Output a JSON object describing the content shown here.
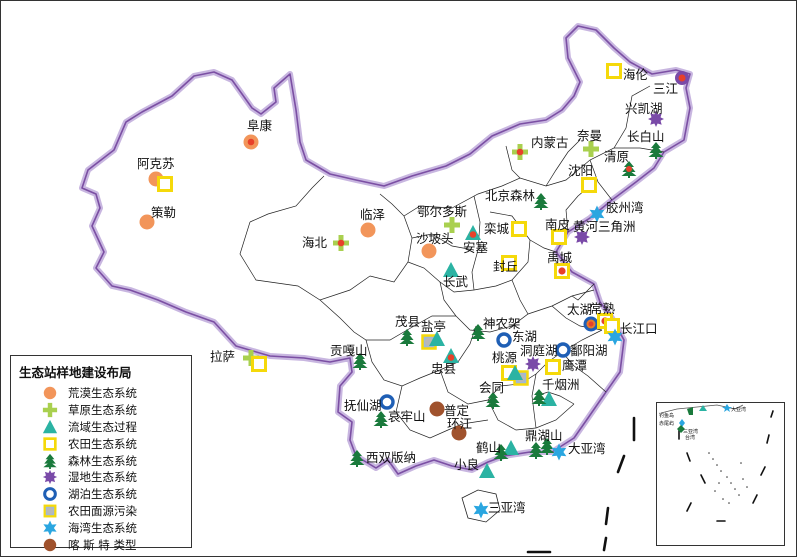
{
  "legend": {
    "title": "生态站样地建设布局",
    "items": [
      {
        "label": "荒漠生态系统",
        "icon": "desert-circle-icon",
        "color": "#f2955a"
      },
      {
        "label": "草原生态系统",
        "icon": "grassland-cross-icon",
        "color": "#a9d04f"
      },
      {
        "label": "流域生态过程",
        "icon": "watershed-triangle-icon",
        "color": "#2bb3a3"
      },
      {
        "label": "农田生态系统",
        "icon": "farmland-square-icon",
        "color": "#f5d90a"
      },
      {
        "label": "森林生态系统",
        "icon": "forest-tree-icon",
        "color": "#1a7a3c"
      },
      {
        "label": "湿地生态系统",
        "icon": "wetland-star-icon",
        "color": "#7a4aa8"
      },
      {
        "label": "湖泊生态系统",
        "icon": "lake-ring-icon",
        "color": "#1f5fb5"
      },
      {
        "label": "农田面源污染",
        "icon": "pollution-square-icon",
        "color": "#9fb8d8"
      },
      {
        "label": "海湾生态系统",
        "icon": "bay-star-icon",
        "color": "#2aa6e0"
      },
      {
        "label": "喀 斯 特 类型",
        "icon": "karst-circle-icon",
        "color": "#a0522d"
      }
    ]
  },
  "stations": [
    {
      "name": "阜康",
      "type": "desert"
    },
    {
      "name": "阿克苏",
      "type": "desert"
    },
    {
      "name": "策勒",
      "type": "desert"
    },
    {
      "name": "临泽",
      "type": "desert"
    },
    {
      "name": "海北",
      "type": "grassland"
    },
    {
      "name": "鄂尔多斯",
      "type": "grassland"
    },
    {
      "name": "沙坡头",
      "type": "desert"
    },
    {
      "name": "安塞",
      "type": "watershed"
    },
    {
      "name": "长武",
      "type": "watershed"
    },
    {
      "name": "拉萨",
      "type": "grassland"
    },
    {
      "name": "贡嘎山",
      "type": "forest"
    },
    {
      "name": "茂县",
      "type": "forest"
    },
    {
      "name": "盐亭",
      "type": "watershed"
    },
    {
      "name": "忠县",
      "type": "watershed"
    },
    {
      "name": "神农架",
      "type": "forest"
    },
    {
      "name": "东湖",
      "type": "lake"
    },
    {
      "name": "鄱阳湖",
      "type": "lake"
    },
    {
      "name": "洞庭湖",
      "type": "wetland"
    },
    {
      "name": "桃源",
      "type": "farmland"
    },
    {
      "name": "鹰潭",
      "type": "farmland"
    },
    {
      "name": "千烟洲",
      "type": "watershed"
    },
    {
      "name": "会同",
      "type": "forest"
    },
    {
      "name": "抚仙湖",
      "type": "lake"
    },
    {
      "name": "哀牢山",
      "type": "forest"
    },
    {
      "name": "普定",
      "type": "karst"
    },
    {
      "name": "环江",
      "type": "karst"
    },
    {
      "name": "西双版纳",
      "type": "forest"
    },
    {
      "name": "鹤山",
      "type": "forest"
    },
    {
      "name": "鼎湖山",
      "type": "forest"
    },
    {
      "name": "小良",
      "type": "watershed"
    },
    {
      "name": "大亚湾",
      "type": "bay"
    },
    {
      "name": "三亚湾",
      "type": "bay"
    },
    {
      "name": "太湖",
      "type": "lake"
    },
    {
      "name": "常熟",
      "type": "farmland"
    },
    {
      "name": "长江口",
      "type": "bay"
    },
    {
      "name": "禹城",
      "type": "farmland"
    },
    {
      "name": "封丘",
      "type": "farmland"
    },
    {
      "name": "栾城",
      "type": "farmland"
    },
    {
      "name": "北京森林",
      "type": "forest"
    },
    {
      "name": "南皮",
      "type": "farmland"
    },
    {
      "name": "黄河三角洲",
      "type": "wetland"
    },
    {
      "name": "胶州湾",
      "type": "bay"
    },
    {
      "name": "沈阳",
      "type": "farmland"
    },
    {
      "name": "清原",
      "type": "forest"
    },
    {
      "name": "长白山",
      "type": "forest"
    },
    {
      "name": "兴凯湖",
      "type": "wetland"
    },
    {
      "name": "三江",
      "type": "wetland"
    },
    {
      "name": "海伦",
      "type": "farmland"
    },
    {
      "name": "奈曼",
      "type": "grassland"
    },
    {
      "name": "内蒙古",
      "type": "grassland"
    }
  ],
  "inset": {
    "labels": [
      "钓鱼岛",
      "赤尾屿",
      "台湾",
      "大亚湾",
      "三亚湾"
    ]
  }
}
